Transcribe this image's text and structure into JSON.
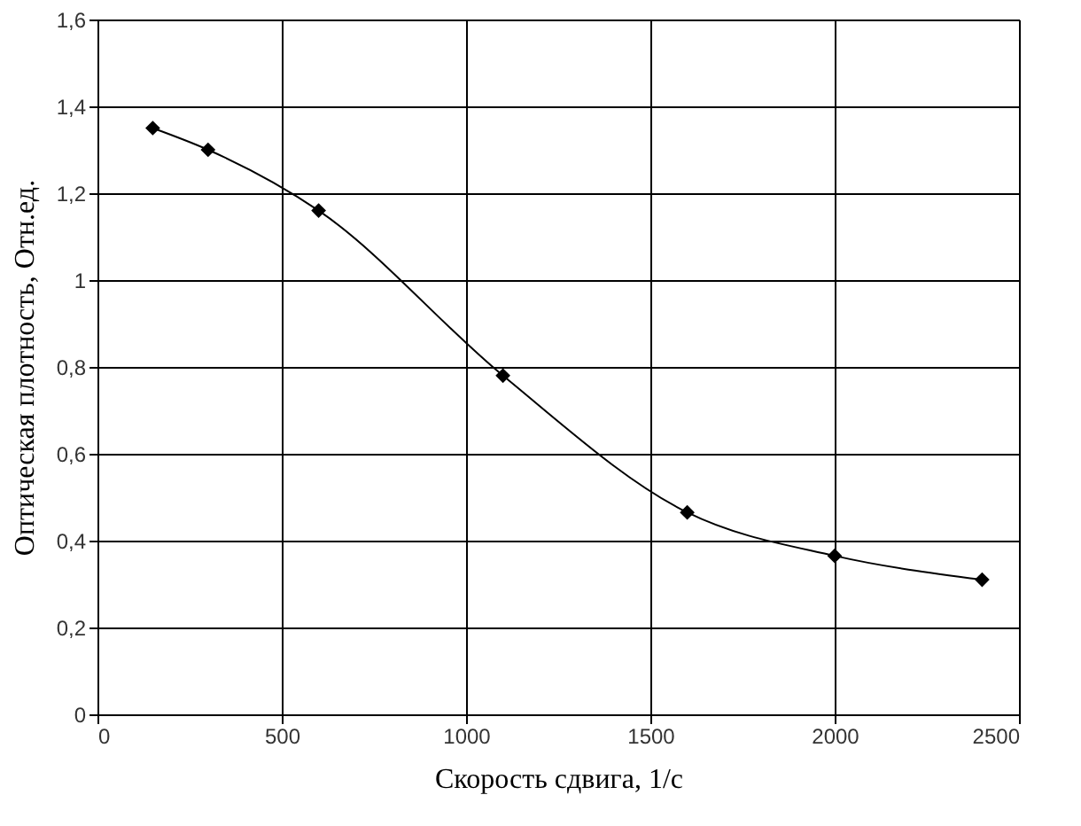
{
  "chart_data": {
    "type": "line",
    "xlabel": "Скорость сдвига, 1/с",
    "ylabel": "Оптическая плотность, Отн.ед.",
    "x": [
      150,
      300,
      600,
      1100,
      1600,
      2000,
      2400
    ],
    "series": [
      {
        "color": "#000000",
        "values": [
          1.35,
          1.3,
          1.16,
          0.78,
          0.465,
          0.365,
          0.31
        ]
      }
    ],
    "xlim": [
      0,
      2500
    ],
    "xticks": [
      0,
      500,
      1000,
      1500,
      2000,
      2500
    ],
    "ylim": [
      0,
      1.6
    ],
    "yticks": [
      0,
      {
        "value": 0.2,
        "label": "0,2"
      },
      {
        "value": 0.4,
        "label": "0,4"
      },
      {
        "value": 0.6,
        "label": "0,6"
      },
      {
        "value": 0.8,
        "label": "0,8"
      },
      1,
      {
        "value": 1.2,
        "label": "1,2"
      },
      {
        "value": 1.4,
        "label": "1,4"
      },
      {
        "value": 1.6,
        "label": "1,6"
      }
    ],
    "grid": true,
    "marker": "diamond",
    "line_style": "solid"
  }
}
